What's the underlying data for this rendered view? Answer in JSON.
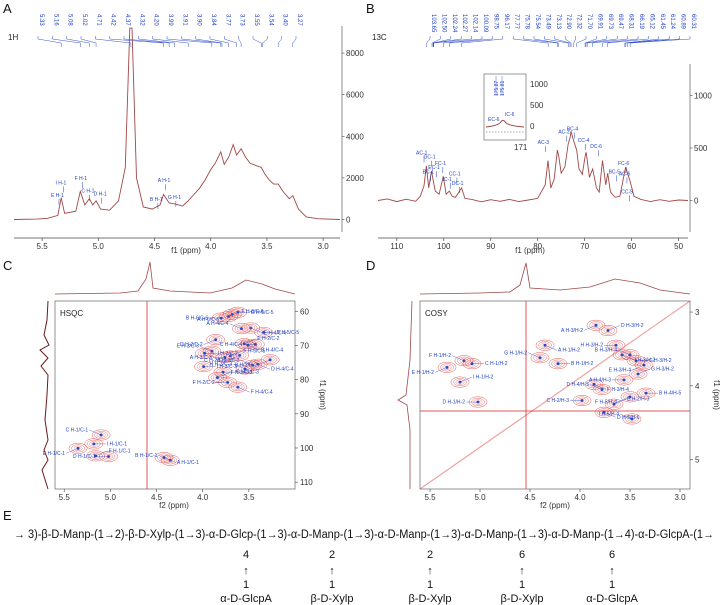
{
  "colors": {
    "spectrum_line": "#a04848",
    "label_blue": "#2040c8",
    "contour_red": "#e04848",
    "contour_blue": "#2848c8",
    "projection_1d": "#8a2a2a"
  },
  "panels": {
    "A": "A",
    "B": "B",
    "C": "C",
    "D": "D",
    "E": "E"
  },
  "chart_data": [
    {
      "id": "A",
      "type": "line",
      "spectrum": "1H",
      "xlabel": "f1 (ppm)",
      "x_reversed": true,
      "xlim": [
        5.75,
        2.85
      ],
      "ylim": [
        -600,
        9300
      ],
      "x_ticks": [
        "5.5",
        "5.0",
        "4.5",
        "4.0",
        "3.5",
        "3.0"
      ],
      "y_ticks": [
        "0",
        "2000",
        "4000",
        "6000",
        "8000"
      ],
      "peak_list": [
        "5.33",
        "5.16",
        "5.08",
        "5.02",
        "4.71",
        "4.42",
        "4.37",
        "4.32",
        "4.20",
        "3.99",
        "3.91",
        "3.90",
        "3.84",
        "3.77",
        "3.73",
        "3.55",
        "3.54",
        "3.40",
        "3.27"
      ],
      "peak_labels": [
        {
          "text": "A H-1",
          "x": 4.4,
          "y": 1600
        },
        {
          "text": "B H-1",
          "x": 4.47,
          "y": 700
        },
        {
          "text": "G H-1",
          "x": 4.31,
          "y": 800
        },
        {
          "text": "I H-1",
          "x": 5.31,
          "y": 1500
        },
        {
          "text": "E H-1",
          "x": 5.35,
          "y": 900
        },
        {
          "text": "F H-1",
          "x": 5.14,
          "y": 1700
        },
        {
          "text": "C H-1",
          "x": 5.08,
          "y": 1100
        },
        {
          "text": "D H-1",
          "x": 4.97,
          "y": 950
        }
      ],
      "series": [
        {
          "points": [
            [
              5.75,
              0
            ],
            [
              5.55,
              20
            ],
            [
              5.45,
              60
            ],
            [
              5.36,
              200
            ],
            [
              5.33,
              1050
            ],
            [
              5.3,
              300
            ],
            [
              5.2,
              400
            ],
            [
              5.16,
              1350
            ],
            [
              5.12,
              700
            ],
            [
              5.08,
              1000
            ],
            [
              5.05,
              700
            ],
            [
              5.02,
              900
            ],
            [
              4.98,
              500
            ],
            [
              4.9,
              450
            ],
            [
              4.82,
              900
            ],
            [
              4.76,
              2500
            ],
            [
              4.72,
              9200
            ],
            [
              4.7,
              9200
            ],
            [
              4.66,
              2000
            ],
            [
              4.6,
              600
            ],
            [
              4.52,
              500
            ],
            [
              4.45,
              700
            ],
            [
              4.42,
              1200
            ],
            [
              4.37,
              800
            ],
            [
              4.32,
              750
            ],
            [
              4.25,
              650
            ],
            [
              4.2,
              900
            ],
            [
              4.15,
              1200
            ],
            [
              4.1,
              1500
            ],
            [
              4.05,
              1900
            ],
            [
              4.0,
              2400
            ],
            [
              3.96,
              2700
            ],
            [
              3.91,
              3250
            ],
            [
              3.88,
              2650
            ],
            [
              3.84,
              3000
            ],
            [
              3.8,
              3600
            ],
            [
              3.77,
              3100
            ],
            [
              3.73,
              3400
            ],
            [
              3.69,
              3000
            ],
            [
              3.65,
              2700
            ],
            [
              3.6,
              2600
            ],
            [
              3.55,
              2500
            ],
            [
              3.52,
              2200
            ],
            [
              3.48,
              1900
            ],
            [
              3.44,
              1700
            ],
            [
              3.4,
              1700
            ],
            [
              3.35,
              1300
            ],
            [
              3.3,
              1000
            ],
            [
              3.27,
              1150
            ],
            [
              3.22,
              500
            ],
            [
              3.15,
              120
            ],
            [
              3.05,
              40
            ],
            [
              2.85,
              0
            ]
          ]
        }
      ]
    },
    {
      "id": "B",
      "type": "line",
      "spectrum": "13C",
      "xlabel": "f1 (ppm)",
      "x_reversed": true,
      "xlim": [
        114,
        48
      ],
      "ylim": [
        -300,
        1300
      ],
      "x_ticks": [
        "110",
        "100",
        "90",
        "80",
        "70",
        "60",
        "50"
      ],
      "y_ticks": [
        "0",
        "500",
        "1000"
      ],
      "peak_list": [
        "103.65",
        "102.50",
        "102.24",
        "102.27",
        "102.14",
        "100.09",
        "98.75",
        "96.17",
        "77.77",
        "75.78",
        "75.54",
        "73.49",
        "73.13",
        "72.90",
        "72.32",
        "71.70",
        "69.91",
        "69.73",
        "69.47",
        "68.31",
        "66.19",
        "65.12",
        "61.45",
        "61.24",
        "60.89",
        "60.31"
      ],
      "peak_labels": [
        {
          "text": "AC-1",
          "x": 104.2,
          "y": 400
        },
        {
          "text": "GC-1",
          "x": 102.6,
          "y": 360
        },
        {
          "text": "EC-1",
          "x": 101.6,
          "y": 260
        },
        {
          "text": "FC-1",
          "x": 100.2,
          "y": 300
        },
        {
          "text": "BC-1",
          "x": 102.8,
          "y": 220
        },
        {
          "text": "CC-1",
          "x": 97.2,
          "y": 200
        },
        {
          "text": "IC-1",
          "x": 98.6,
          "y": 150
        },
        {
          "text": "DC-1",
          "x": 96.6,
          "y": 110
        },
        {
          "text": "AC-3",
          "x": 78.3,
          "y": 500
        },
        {
          "text": "AC-2",
          "x": 73.9,
          "y": 600
        },
        {
          "text": "BC-4",
          "x": 72.1,
          "y": 630
        },
        {
          "text": "CC-4",
          "x": 69.8,
          "y": 520
        },
        {
          "text": "DC-6",
          "x": 67.1,
          "y": 460
        },
        {
          "text": "FC-6",
          "x": 61.2,
          "y": 300
        },
        {
          "text": "BC-5",
          "x": 63.2,
          "y": 220
        },
        {
          "text": "AC-6",
          "x": 61.0,
          "y": 200
        },
        {
          "text": "CC-5",
          "x": 60.5,
          "y": 30
        }
      ],
      "inset": {
        "x_tick": "171",
        "y_ticks": [
          "0",
          "500",
          "1000"
        ],
        "peak_list": [
          "175.87",
          "175.81"
        ],
        "peak_labels": [
          "EC-6",
          "IC-6"
        ]
      },
      "series": [
        {
          "points": [
            [
              114,
              0
            ],
            [
              112,
              15
            ],
            [
              110,
              -10
            ],
            [
              108,
              12
            ],
            [
              106,
              -8
            ],
            [
              105,
              40
            ],
            [
              104.2,
              140
            ],
            [
              103.7,
              330
            ],
            [
              103.2,
              120
            ],
            [
              102.6,
              280
            ],
            [
              102.2,
              180
            ],
            [
              101.8,
              90
            ],
            [
              101,
              60
            ],
            [
              100.1,
              230
            ],
            [
              99.5,
              60
            ],
            [
              98.8,
              90
            ],
            [
              98.2,
              40
            ],
            [
              97.5,
              30
            ],
            [
              96.2,
              120
            ],
            [
              95.5,
              20
            ],
            [
              94,
              10
            ],
            [
              92,
              -12
            ],
            [
              90,
              8
            ],
            [
              88,
              -8
            ],
            [
              86,
              10
            ],
            [
              84,
              -10
            ],
            [
              82,
              5
            ],
            [
              80,
              20
            ],
            [
              79.5,
              60
            ],
            [
              78.4,
              150
            ],
            [
              77.8,
              380
            ],
            [
              77.2,
              120
            ],
            [
              76.5,
              200
            ],
            [
              75.8,
              480
            ],
            [
              75.5,
              420
            ],
            [
              75.0,
              260
            ],
            [
              74.2,
              320
            ],
            [
              73.5,
              540
            ],
            [
              73.1,
              600
            ],
            [
              72.9,
              660
            ],
            [
              72.3,
              560
            ],
            [
              71.7,
              480
            ],
            [
              71.2,
              300
            ],
            [
              70.5,
              250
            ],
            [
              69.9,
              420
            ],
            [
              69.7,
              460
            ],
            [
              69.5,
              400
            ],
            [
              69.0,
              220
            ],
            [
              68.3,
              300
            ],
            [
              67.5,
              120
            ],
            [
              66.9,
              80
            ],
            [
              66.2,
              380
            ],
            [
              65.5,
              150
            ],
            [
              65.1,
              260
            ],
            [
              64.5,
              80
            ],
            [
              63.5,
              30
            ],
            [
              62.5,
              40
            ],
            [
              61.45,
              280
            ],
            [
              61.24,
              320
            ],
            [
              60.89,
              260
            ],
            [
              60.31,
              180
            ],
            [
              59.5,
              40
            ],
            [
              58,
              10
            ],
            [
              56,
              -10
            ],
            [
              54,
              8
            ],
            [
              52,
              -8
            ],
            [
              50,
              5
            ],
            [
              48,
              0
            ]
          ]
        }
      ]
    },
    {
      "id": "C",
      "type": "scatter",
      "spectrum": "HSQC",
      "xlabel": "f2 (ppm)",
      "ylabel": "f1 (ppm)",
      "x_reversed": true,
      "xlim": [
        5.6,
        3.0
      ],
      "ylim": [
        57,
        112
      ],
      "x_ticks": [
        "5.5",
        "5.0",
        "4.5",
        "4.0",
        "3.5"
      ],
      "y_ticks": [
        "60",
        "70",
        "80",
        "90",
        "100",
        "110"
      ],
      "cross_peaks": [
        {
          "label": "C H-1/C-1",
          "x": 5.1,
          "y": 96.2
        },
        {
          "label": "I H-1/C-1",
          "x": 5.18,
          "y": 98.8
        },
        {
          "label": "E H-1/C-1",
          "x": 5.35,
          "y": 100.1
        },
        {
          "label": "F H-1/C-1",
          "x": 5.16,
          "y": 102.3
        },
        {
          "label": "D H-1/C-1",
          "x": 5.02,
          "y": 102.5
        },
        {
          "label": "A H-1/C-1",
          "x": 4.42,
          "y": 102.8
        },
        {
          "label": "B H-1/C-1",
          "x": 4.35,
          "y": 103.6
        },
        {
          "label": "G H-5/C-5",
          "x": 3.62,
          "y": 60.3
        },
        {
          "label": "A H-6/C-6",
          "x": 3.68,
          "y": 60.9
        },
        {
          "label": "F H-6/C-6",
          "x": 3.72,
          "y": 61.5
        },
        {
          "label": "B H-6/C-6",
          "x": 3.8,
          "y": 62.0
        },
        {
          "label": "E H-4/C-4",
          "x": 3.48,
          "y": 64.9
        },
        {
          "label": "A H-4/C-4",
          "x": 3.58,
          "y": 65.1
        },
        {
          "label": "D H-5/C-5",
          "x": 3.34,
          "y": 66.2
        },
        {
          "label": "D H-2/C-2",
          "x": 3.86,
          "y": 68.3
        },
        {
          "label": "E H-2/C-2",
          "x": 3.55,
          "y": 69.5
        },
        {
          "label": "C H-4/C-4",
          "x": 3.43,
          "y": 69.7
        },
        {
          "label": "B H-4/C-4",
          "x": 3.51,
          "y": 69.9
        },
        {
          "label": "E H-3/C-3",
          "x": 3.9,
          "y": 71.7
        },
        {
          "label": "I H-2/C-2",
          "x": 3.98,
          "y": 72.3
        },
        {
          "label": "C H-2/C-2",
          "x": 3.6,
          "y": 72.9
        },
        {
          "label": "F H-5/C-5",
          "x": 3.7,
          "y": 73.1
        },
        {
          "label": "A H-3/C-3",
          "x": 3.76,
          "y": 73.5
        },
        {
          "label": "D H-4/C-4",
          "x": 3.4,
          "y": 75.5
        },
        {
          "label": "B H-3/C-3",
          "x": 3.46,
          "y": 75.8
        },
        {
          "label": "G H-3/C-3",
          "x": 3.78,
          "y": 77.8
        },
        {
          "label": "B H-2/C-2",
          "x": 3.27,
          "y": 74.2
        },
        {
          "label": "F H-3/C-3",
          "x": 3.84,
          "y": 79.4
        },
        {
          "label": "F H-2/C-2",
          "x": 3.73,
          "y": 80.8
        },
        {
          "label": "F H-4/C-4",
          "x": 3.62,
          "y": 82.2
        },
        {
          "label": "H H-3/C-3",
          "x": 3.54,
          "y": 76.9
        },
        {
          "label": "I H-3/C-3",
          "x": 3.99,
          "y": 76.2
        }
      ]
    },
    {
      "id": "D",
      "type": "scatter",
      "spectrum": "COSY",
      "xlabel": "f2 (ppm)",
      "ylabel": "f1 (ppm)",
      "x_reversed": true,
      "xlim": [
        5.6,
        2.9
      ],
      "ylim": [
        2.85,
        5.4
      ],
      "x_ticks": [
        "5.5",
        "5.0",
        "4.5",
        "4.0",
        "3.5",
        "3.0"
      ],
      "y_ticks": [
        "3",
        "4",
        "5"
      ],
      "cross_peaks": [
        {
          "label": "F H-1/H-2",
          "x": 5.16,
          "y": 3.66
        },
        {
          "label": "C H-1/H-2",
          "x": 5.08,
          "y": 3.7
        },
        {
          "label": "E H-1/H-2",
          "x": 5.33,
          "y": 3.75
        },
        {
          "label": "I H-1/H-2",
          "x": 5.2,
          "y": 3.95
        },
        {
          "label": "D H-1/H-2",
          "x": 5.02,
          "y": 4.22
        },
        {
          "label": "A H-1/H-2",
          "x": 4.35,
          "y": 3.45
        },
        {
          "label": "G H-1/H-2",
          "x": 4.4,
          "y": 3.62
        },
        {
          "label": "B H-1/H-2",
          "x": 4.22,
          "y": 3.7
        },
        {
          "label": "A H-3/H-2",
          "x": 3.84,
          "y": 3.18
        },
        {
          "label": "D H-3/H-2",
          "x": 3.72,
          "y": 3.25
        },
        {
          "label": "H H-3/H-2",
          "x": 3.64,
          "y": 3.45
        },
        {
          "label": "I H-3/H-2",
          "x": 3.58,
          "y": 3.58
        },
        {
          "label": "B H-3/H-4",
          "x": 3.5,
          "y": 3.58
        },
        {
          "label": "C H-3/H-2",
          "x": 3.44,
          "y": 3.66
        },
        {
          "label": "E H-3/H-4",
          "x": 3.36,
          "y": 3.72
        },
        {
          "label": "G H-3/H-2",
          "x": 3.42,
          "y": 3.84
        },
        {
          "label": "A H-4/H-3",
          "x": 3.56,
          "y": 3.92
        },
        {
          "label": "F H-3/H-4",
          "x": 3.86,
          "y": 3.98
        },
        {
          "label": "D H-4/H-5",
          "x": 3.78,
          "y": 4.05
        },
        {
          "label": "B H-4/H-5",
          "x": 3.34,
          "y": 4.1
        },
        {
          "label": "F H-5/H-4",
          "x": 3.5,
          "y": 4.15
        },
        {
          "label": "E H-2/H-3",
          "x": 3.66,
          "y": 4.25
        },
        {
          "label": "C H-2/H-3",
          "x": 3.98,
          "y": 4.2
        },
        {
          "label": "D H-5/H-6",
          "x": 3.76,
          "y": 4.36
        },
        {
          "label": "I H-5/H-4",
          "x": 3.48,
          "y": 4.45
        }
      ]
    }
  ],
  "structure": {
    "backbone": "→ 3)-β-D-Manp-(1→2)-β-D-Xylp-(1→3)-α-D-Glcp-(1→3)-α-D-Manp-(1→3)-α-D-Manp-(1→3)-α-D-Manp-(1→3)-α-D-Manp-(1→4)-α-D-GlcpA-(1→",
    "branches": [
      {
        "position": "4",
        "arrow": "↑",
        "one": "1",
        "unit": "α-D-GlcpA"
      },
      {
        "position": "2",
        "arrow": "↑",
        "one": "1",
        "unit": "β-D-Xylp"
      },
      {
        "position": "2",
        "arrow": "↑",
        "one": "1",
        "unit": "β-D-Xylp"
      },
      {
        "position": "6",
        "arrow": "↑",
        "one": "1",
        "unit": "β-D-Xylp"
      },
      {
        "position": "6",
        "arrow": "↑",
        "one": "1",
        "unit": "α-D-GlcpA"
      }
    ]
  }
}
